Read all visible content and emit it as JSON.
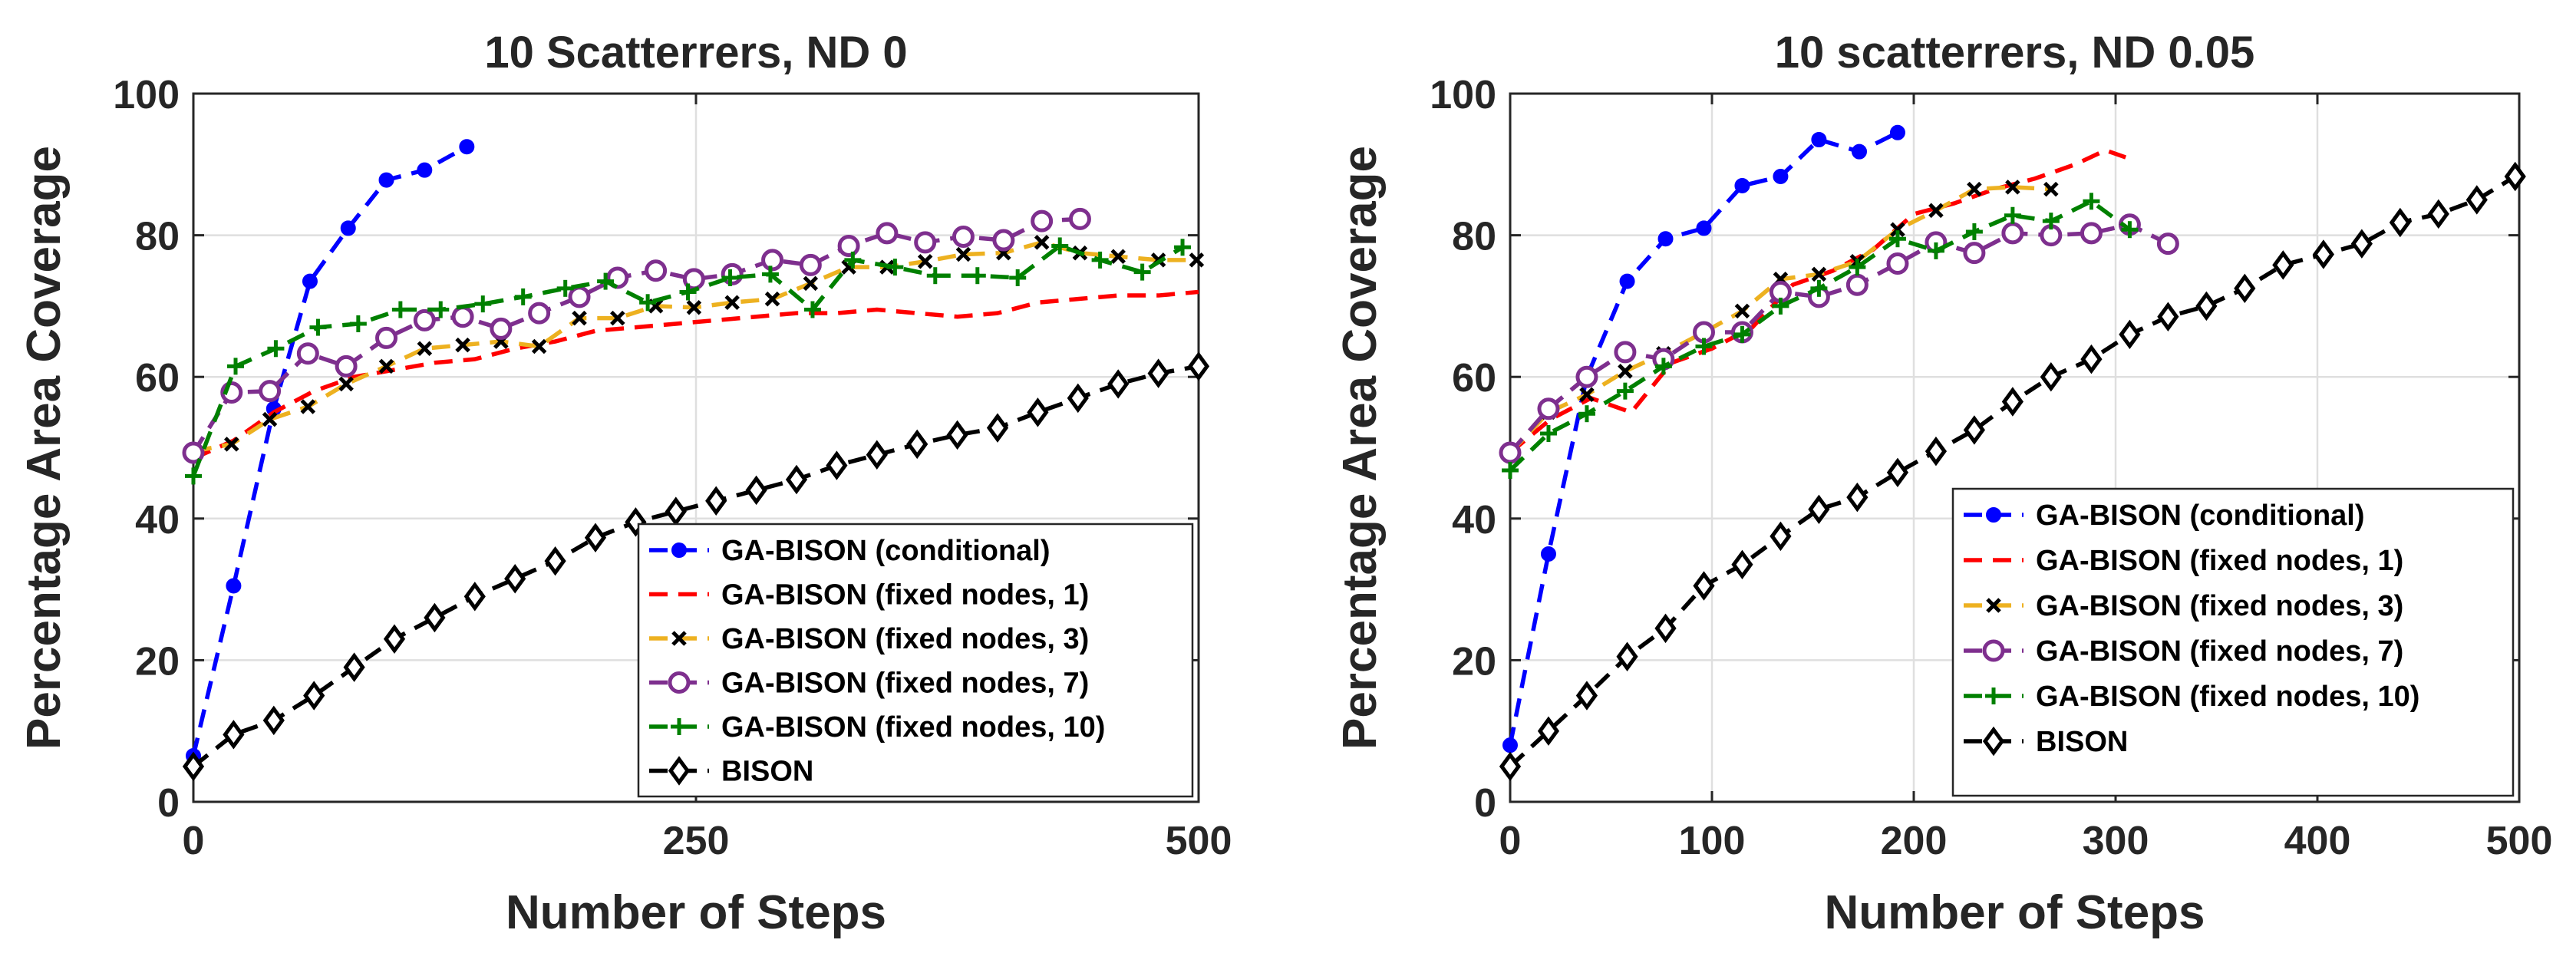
{
  "chart_data": [
    {
      "type": "line",
      "title": "10 Scatterrers, ND 0",
      "xlabel": "Number of Steps",
      "ylabel": "Percentage Area Coverage",
      "xlim": [
        0,
        500
      ],
      "ylim": [
        0,
        100
      ],
      "xticks": [
        0,
        250,
        500
      ],
      "yticks": [
        0,
        20,
        40,
        60,
        80,
        100
      ],
      "grid": true,
      "legend_position": "bottom-right",
      "series": [
        {
          "name": "GA-BISON (conditional)",
          "color": "#0000ff",
          "marker": "dot",
          "x": [
            0,
            20,
            40,
            58,
            77,
            96,
            115,
            136
          ],
          "y": [
            6.5,
            30.5,
            55.5,
            73.5,
            81,
            87.8,
            89.2,
            92.5
          ]
        },
        {
          "name": "GA-BISON (fixed nodes, 1)",
          "color": "#ff0000",
          "marker": "none",
          "x": [
            0,
            20,
            40,
            60,
            80,
            100,
            120,
            140,
            160,
            180,
            200,
            220,
            240,
            260,
            280,
            300,
            320,
            340,
            360,
            380,
            400,
            420,
            440,
            460,
            480,
            500
          ],
          "y": [
            48.5,
            51,
            55,
            58,
            60,
            61,
            62,
            62.5,
            64,
            65,
            66.5,
            67,
            67.5,
            68,
            68.5,
            69,
            69,
            69.5,
            69,
            68.5,
            69,
            70.5,
            71,
            71.5,
            71.5,
            72
          ]
        },
        {
          "name": "GA-BISON (fixed nodes, 3)",
          "color": "#edb120",
          "marker": "x",
          "x": [
            0,
            19,
            38,
            57,
            76,
            96,
            115,
            134,
            153,
            172,
            192,
            211,
            230,
            249,
            268,
            288,
            307,
            326,
            345,
            364,
            383,
            403,
            422,
            441,
            460,
            480,
            499
          ],
          "y": [
            49.5,
            50.5,
            54,
            55.8,
            59,
            61.5,
            64,
            64.5,
            65,
            64.3,
            68.3,
            68.3,
            70,
            69.8,
            70.5,
            71,
            73.2,
            75.5,
            75.5,
            76.3,
            77.3,
            77.5,
            79,
            77.5,
            77,
            76.5,
            76.5
          ]
        },
        {
          "name": "GA-BISON (fixed nodes, 7)",
          "color": "#7e2f8e",
          "marker": "circle",
          "x": [
            0,
            19,
            38,
            57,
            76,
            96,
            115,
            134,
            153,
            172,
            192,
            211,
            230,
            249,
            268,
            288,
            307,
            326,
            345,
            364,
            383,
            403,
            422,
            441
          ],
          "y": [
            49.3,
            57.8,
            58,
            63.3,
            61.5,
            65.5,
            68,
            68.5,
            66.8,
            69,
            71.3,
            74,
            75,
            73.8,
            74.5,
            76.5,
            75.8,
            78.5,
            80.3,
            79,
            79.8,
            79.3,
            82,
            82.3
          ]
        },
        {
          "name": "GA-BISON (fixed nodes, 10)",
          "color": "#008000",
          "marker": "plus",
          "x": [
            0,
            21,
            41,
            62,
            82,
            103,
            123,
            144,
            164,
            185,
            205,
            226,
            246,
            267,
            287,
            308,
            328,
            349,
            369,
            390,
            410,
            431,
            451,
            472,
            492
          ],
          "y": [
            46,
            61.5,
            64,
            67,
            67.5,
            69.5,
            69.5,
            70.3,
            71.3,
            72.5,
            73.5,
            70.5,
            72,
            74,
            74.5,
            69.5,
            76.5,
            75.5,
            74.3,
            74.3,
            74,
            78.5,
            76.5,
            74.8,
            78.3
          ]
        },
        {
          "name": "BISON",
          "color": "#000000",
          "marker": "diamond",
          "x": [
            0,
            20,
            40,
            60,
            80,
            100,
            120,
            140,
            160,
            180,
            200,
            220,
            240,
            260,
            280,
            300,
            320,
            340,
            360,
            380,
            400,
            420,
            440,
            460,
            480,
            500
          ],
          "y": [
            5,
            9.5,
            11.5,
            15,
            19,
            23,
            26,
            29,
            31.5,
            34,
            37.3,
            39.5,
            41,
            42.5,
            44,
            45.5,
            47.5,
            49,
            50.5,
            51.8,
            52.8,
            55,
            57,
            59,
            60.5,
            61.5
          ]
        }
      ]
    },
    {
      "type": "line",
      "title": "10 scatterrers, ND 0.05",
      "xlabel": "Number of Steps",
      "ylabel": "Percentage Area Coverage",
      "xlim": [
        0,
        500
      ],
      "ylim": [
        0,
        100
      ],
      "xticks": [
        0,
        100,
        200,
        300,
        400,
        500
      ],
      "yticks": [
        0,
        20,
        40,
        60,
        80,
        100
      ],
      "grid": true,
      "legend_position": "bottom-right",
      "series": [
        {
          "name": "GA-BISON (conditional)",
          "color": "#0000ff",
          "marker": "dot",
          "x": [
            0,
            19,
            38,
            58,
            77,
            96,
            115,
            134,
            153,
            173,
            192
          ],
          "y": [
            8,
            35,
            60,
            73.5,
            79.5,
            81,
            87,
            88.3,
            93.5,
            91.8,
            94.5
          ]
        },
        {
          "name": "GA-BISON (fixed nodes, 1)",
          "color": "#ff0000",
          "marker": "none",
          "x": [
            0,
            20,
            40,
            60,
            80,
            100,
            120,
            140,
            160,
            180,
            200,
            220,
            240,
            260,
            280,
            295,
            305
          ],
          "y": [
            49.3,
            54,
            57,
            55,
            62,
            64,
            67,
            73,
            75,
            78,
            83,
            84.5,
            86.5,
            88,
            90,
            92,
            91
          ]
        },
        {
          "name": "GA-BISON (fixed nodes, 3)",
          "color": "#edb120",
          "marker": "x",
          "x": [
            0,
            19,
            38,
            57,
            76,
            96,
            115,
            134,
            153,
            172,
            192,
            211,
            230,
            249,
            268
          ],
          "y": [
            49.3,
            55,
            57.5,
            60.8,
            63.3,
            66.3,
            69.3,
            73.8,
            74.5,
            76.3,
            80.8,
            83.5,
            86.5,
            86.8,
            86.5
          ]
        },
        {
          "name": "GA-BISON (fixed nodes, 7)",
          "color": "#7e2f8e",
          "marker": "circle",
          "x": [
            0,
            19,
            38,
            57,
            76,
            96,
            115,
            134,
            153,
            172,
            192,
            211,
            230,
            249,
            268,
            288,
            307,
            326
          ],
          "y": [
            49.3,
            55.5,
            60,
            63.5,
            62.5,
            66.3,
            66.3,
            72,
            71.3,
            73,
            76,
            79,
            77.5,
            80.3,
            80,
            80.3,
            81.5,
            78.8
          ]
        },
        {
          "name": "GA-BISON (fixed nodes, 10)",
          "color": "#008000",
          "marker": "plus",
          "x": [
            0,
            19,
            38,
            57,
            76,
            96,
            115,
            134,
            153,
            172,
            192,
            211,
            230,
            249,
            268,
            288,
            307
          ],
          "y": [
            46.8,
            52,
            54.8,
            58,
            61.5,
            64.3,
            66,
            70,
            72.5,
            75.5,
            79.5,
            77.8,
            80.5,
            82.8,
            82,
            84.8,
            80.8
          ]
        },
        {
          "name": "BISON",
          "color": "#000000",
          "marker": "diamond",
          "x": [
            0,
            19,
            38,
            58,
            77,
            96,
            115,
            134,
            153,
            172,
            192,
            211,
            230,
            249,
            268,
            288,
            307,
            326,
            345,
            364,
            383,
            403,
            422,
            441,
            460,
            479,
            498
          ],
          "y": [
            5,
            10,
            15,
            20.5,
            24.5,
            30.5,
            33.5,
            37.5,
            41.3,
            43,
            46.5,
            49.5,
            52.5,
            56.5,
            60,
            62.5,
            66,
            68.5,
            70,
            72.5,
            75.8,
            77.3,
            78.8,
            81.8,
            83,
            85,
            88.3
          ]
        }
      ]
    }
  ]
}
